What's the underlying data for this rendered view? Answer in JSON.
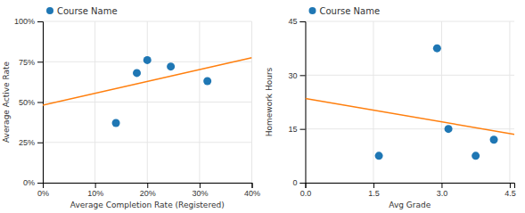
{
  "chart_data": [
    {
      "type": "scatter",
      "x_label": "Average Completion Rate (Registered)",
      "y_label": "Average Active Rate",
      "series": [
        {
          "name": "Course Name",
          "type": "scatter",
          "x": [
            0.14,
            0.18,
            0.2,
            0.245,
            0.315
          ],
          "values": [
            0.37,
            0.68,
            0.76,
            0.72,
            0.63
          ]
        },
        {
          "type": "line",
          "x": [
            0.0,
            0.4
          ],
          "values": [
            0.48,
            0.775
          ]
        }
      ],
      "xlim": [
        0.0,
        0.4
      ],
      "ylim": [
        0.0,
        1.0
      ],
      "xticks": [
        {
          "value": 0.0,
          "label": "0%"
        },
        {
          "value": 0.1,
          "label": "10%"
        },
        {
          "value": 0.2,
          "label": "20%"
        },
        {
          "value": 0.3,
          "label": "30%"
        },
        {
          "value": 0.4,
          "label": "40%"
        }
      ],
      "yticks": [
        {
          "value": 0.0,
          "label": "0%"
        },
        {
          "value": 0.25,
          "label": "25%"
        },
        {
          "value": 0.5,
          "label": "50%"
        },
        {
          "value": 0.75,
          "label": "75%"
        },
        {
          "value": 1.0,
          "label": "100%"
        }
      ],
      "grid": true
    },
    {
      "type": "scatter",
      "x_label": "Avg Grade",
      "y_label": "Homework Hours",
      "series": [
        {
          "name": "Course Name",
          "type": "scatter",
          "x": [
            1.62,
            2.9,
            3.15,
            3.75,
            4.15
          ],
          "values": [
            7.5,
            37.5,
            15,
            7.5,
            12
          ]
        },
        {
          "type": "line",
          "x": [
            0,
            4.6
          ],
          "values": [
            23.5,
            13.5
          ]
        }
      ],
      "xlim": [
        0,
        4.6
      ],
      "ylim": [
        0,
        45
      ],
      "xticks": [
        {
          "value": 0,
          "label": "0.0"
        },
        1.5,
        {
          "value": 3.0,
          "label": "3.0"
        },
        4.5
      ],
      "yticks": [
        0,
        15,
        30,
        45
      ],
      "grid": true
    }
  ]
}
